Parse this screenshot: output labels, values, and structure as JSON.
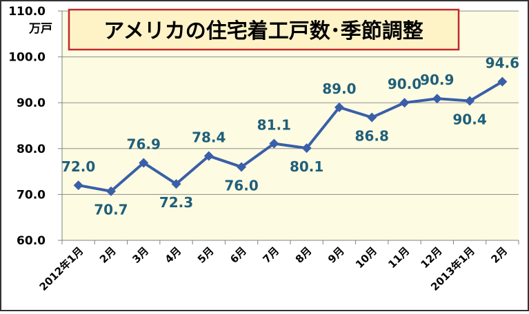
{
  "chart_data": {
    "type": "line",
    "title": "アメリカの住宅着工戸数･季節調整",
    "ylabel": "万戸",
    "xlabel": "",
    "ylim": [
      60.0,
      110.0
    ],
    "yticks": [
      "60.0",
      "70.0",
      "80.0",
      "90.0",
      "100.0",
      "110.0"
    ],
    "grid": true,
    "categories": [
      "2012年1月",
      "2月",
      "3月",
      "4月",
      "5月",
      "6月",
      "7月",
      "8月",
      "9月",
      "10月",
      "11月",
      "12月",
      "2013年1月",
      "2月"
    ],
    "series": [
      {
        "values": [
          72.0,
          70.7,
          76.9,
          72.3,
          78.4,
          76.0,
          81.1,
          80.1,
          89.0,
          86.8,
          90.0,
          90.9,
          90.4,
          94.6
        ],
        "labels": [
          "72.0",
          "70.7",
          "76.9",
          "72.3",
          "78.4",
          "76.0",
          "81.1",
          "80.1",
          "89.0",
          "86.8",
          "90.0",
          "90.9",
          "90.4",
          "94.6"
        ]
      }
    ],
    "colors": {
      "line": "#3a5fa8",
      "marker": "#3a5fa8",
      "data_label": "#1f5f7a",
      "plot_bg": "#fdfbe2",
      "title_bg": "#fdf3c7",
      "title_border": "#c0282a",
      "outer_border": "#333333"
    }
  }
}
